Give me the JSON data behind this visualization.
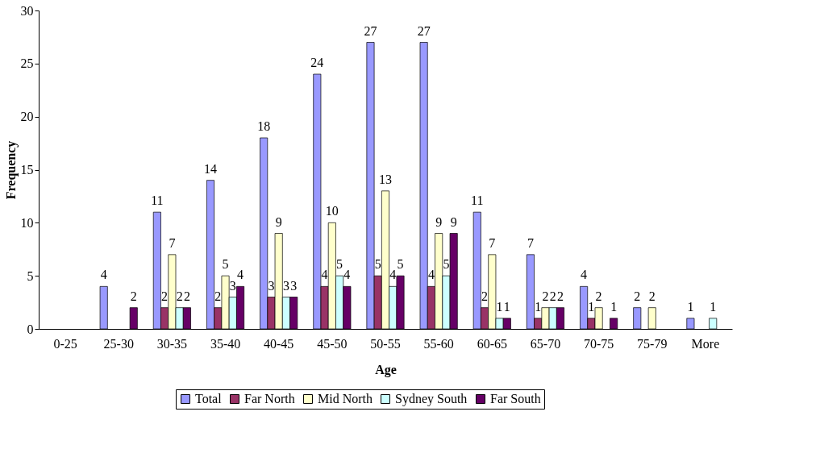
{
  "chart_data": {
    "type": "bar",
    "xlabel": "Age",
    "ylabel": "Frequency",
    "categories": [
      "0-25",
      "25-30",
      "30-35",
      "35-40",
      "40-45",
      "45-50",
      "50-55",
      "55-60",
      "60-65",
      "65-70",
      "70-75",
      "75-79",
      "More"
    ],
    "ylim": [
      0,
      30
    ],
    "yticks": [
      0,
      5,
      10,
      15,
      20,
      25,
      30
    ],
    "grid": false,
    "legend": "bottom",
    "series": [
      {
        "name": "Total",
        "color": "#9999ff",
        "values": [
          0,
          4,
          11,
          14,
          18,
          24,
          27,
          27,
          11,
          7,
          4,
          2,
          1
        ],
        "value_labels": [
          null,
          "4",
          "11",
          "14",
          "18",
          "24",
          "27",
          "27",
          "11",
          "7",
          "4",
          "2",
          "1"
        ]
      },
      {
        "name": "Far North",
        "color": "#993366",
        "values": [
          0,
          0,
          2,
          2,
          3,
          4,
          5,
          4,
          2,
          1,
          1,
          0,
          0
        ],
        "value_labels": [
          null,
          null,
          "2",
          "2",
          "3",
          "4",
          "5",
          "4",
          "2",
          "1",
          "1",
          null,
          null
        ]
      },
      {
        "name": "Mid North",
        "color": "#ffffcc",
        "values": [
          0,
          0,
          7,
          5,
          9,
          10,
          13,
          9,
          7,
          2,
          2,
          2,
          0
        ],
        "value_labels": [
          null,
          null,
          "7",
          "5",
          "9",
          "10",
          "13",
          "9",
          "7",
          "2",
          "2",
          "2",
          null
        ]
      },
      {
        "name": "Sydney South",
        "color": "#ccffff",
        "values": [
          0,
          0,
          2,
          3,
          3,
          5,
          4,
          5,
          1,
          2,
          0,
          0,
          1
        ],
        "value_labels": [
          null,
          null,
          "2",
          "3",
          "3",
          "5",
          "4",
          "5",
          "1",
          "2",
          null,
          null,
          "1"
        ]
      },
      {
        "name": "Far South",
        "color": "#660066",
        "values": [
          0,
          2,
          2,
          4,
          3,
          4,
          5,
          9,
          1,
          2,
          1,
          0,
          0
        ],
        "value_labels": [
          null,
          "2",
          "2",
          "4",
          "3",
          "4",
          "5",
          "9",
          "1",
          "2",
          "1",
          null,
          null
        ]
      }
    ]
  }
}
